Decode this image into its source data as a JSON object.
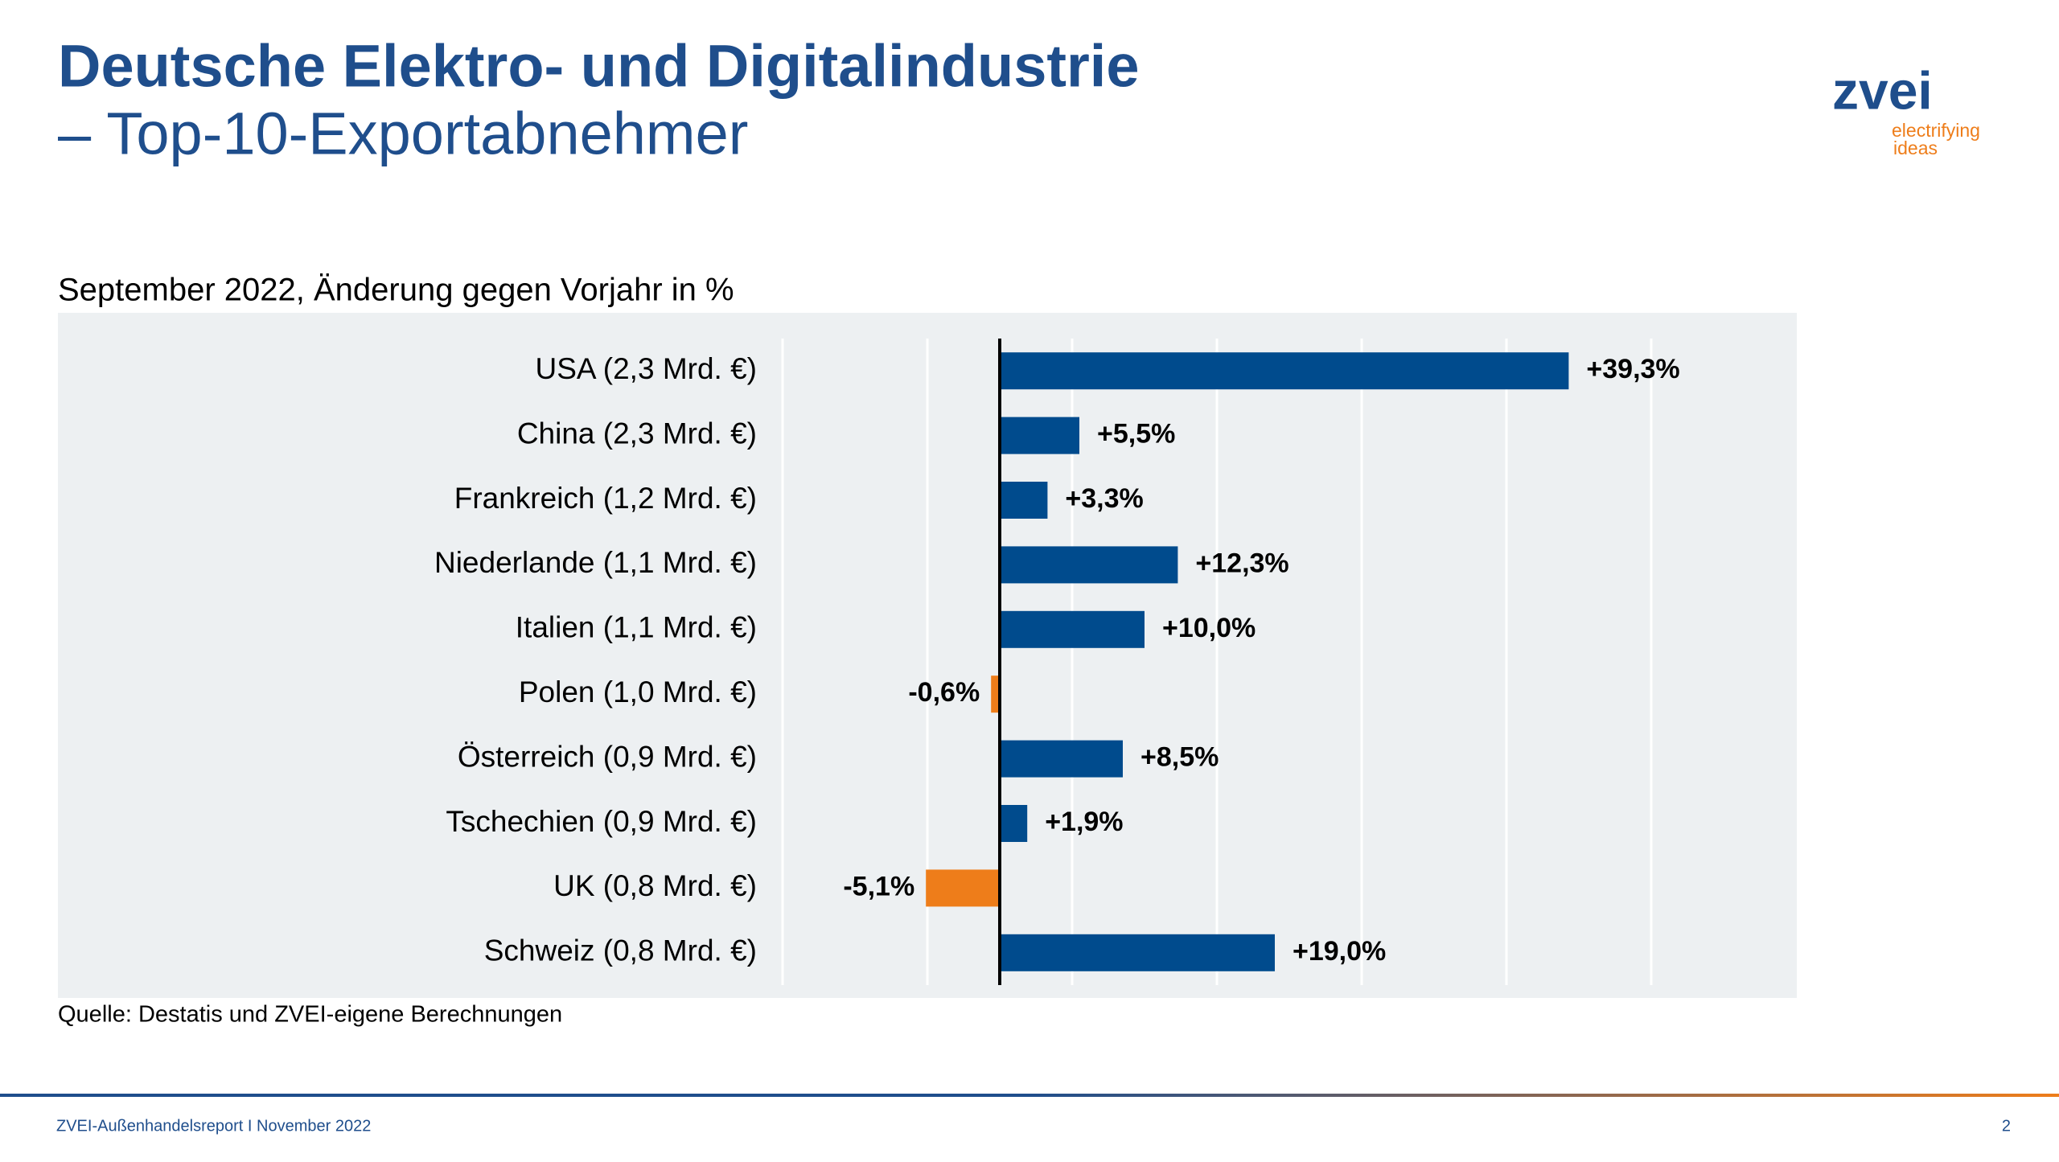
{
  "header": {
    "title": "Deutsche Elektro- und Digitalindustrie",
    "subtitle": "– Top-10-Exportabnehmer"
  },
  "logo": {
    "name": "zvei",
    "tagline": [
      "electrifying",
      "ideas"
    ]
  },
  "chart_data": {
    "type": "bar",
    "orientation": "horizontal",
    "title": "September 2022, Änderung gegen Vorjahr in %",
    "categories": [
      "USA (2,3 Mrd. €)",
      "China (2,3 Mrd. €)",
      "Frankreich (1,2 Mrd. €)",
      "Niederlande (1,1 Mrd. €)",
      "Italien (1,1 Mrd. €)",
      "Polen (1,0 Mrd. €)",
      "Österreich (0,9 Mrd. €)",
      "Tschechien (0,9 Mrd. €)",
      "UK (0,8 Mrd. €)",
      "Schweiz (0,8 Mrd. €)"
    ],
    "values": [
      39.3,
      5.5,
      3.3,
      12.3,
      10.0,
      -0.6,
      8.5,
      1.9,
      -5.1,
      19.0
    ],
    "value_labels": [
      "+39,3%",
      "+5,5%",
      "+3,3%",
      "+12,3%",
      "+10,0%",
      "-0,6%",
      "+8,5%",
      "+1,9%",
      "-5,1%",
      "+19,0%"
    ],
    "color": "#004b8d",
    "negative_color": "#ee7d1a",
    "xlim": [
      -15,
      45
    ],
    "xticks": [
      -15,
      -5,
      5,
      15,
      25,
      35,
      45
    ],
    "grid": true,
    "source": "Quelle: Destatis und ZVEI-eigene Berechnungen"
  },
  "footer": {
    "text": "ZVEI-Außenhandelsreport I November 2022",
    "page": 2
  }
}
